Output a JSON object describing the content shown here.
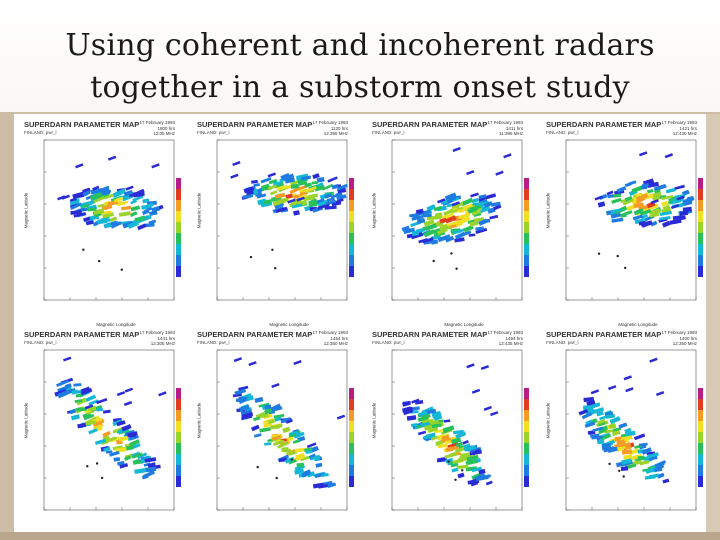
{
  "slide": {
    "title_line1": "Using coherent and incoherent radars",
    "title_line2": "together in a substorm onset study"
  },
  "panels": [
    {
      "title": "SUPERDARN PARAMETER MAP",
      "subtitle": "FINLAND: pwr_l",
      "info": "17 February 1993\n1800 hrs\n12:05 MHz",
      "xlabel": "Magnetic Longitude",
      "ylabel": "Magnetic Latitude"
    },
    {
      "title": "SUPERDARN PARAMETER MAP",
      "subtitle": "FINLAND: pwr_l",
      "info": "17 February 1993\n1120 hrs\n12:395 MHz",
      "xlabel": "Magnetic Longitude",
      "ylabel": "Magnetic Latitude"
    },
    {
      "title": "SUPERDARN PARAMETER MAP",
      "subtitle": "FINLAND: pwr_l",
      "info": "17 February 1993\n1411 hrs\n11:395 MHz",
      "xlabel": "Magnetic Longitude",
      "ylabel": "Magnetic Latitude"
    },
    {
      "title": "SUPERDARN PARAMETER MAP",
      "subtitle": "FINLAND: pwr_l",
      "info": "17 February 1993\n1421 hrs\n12:430 MHz",
      "xlabel": "Magnetic Longitude",
      "ylabel": "Magnetic Latitude"
    },
    {
      "title": "SUPERDARN PARAMETER MAP",
      "subtitle": "FINLAND: pwr_l",
      "info": "17 February 1993\n1441 hrs\n12:305 MHz",
      "xlabel": "Magnetic Longitude",
      "ylabel": "Magnetic Latitude"
    },
    {
      "title": "SUPERDARN PARAMETER MAP",
      "subtitle": "FINLAND: pwr_l",
      "info": "17 February 1993\n1454 hrs\n12:350 MHz",
      "xlabel": "Magnetic Longitude",
      "ylabel": "Magnetic Latitude"
    },
    {
      "title": "SUPERDARN PARAMETER MAP",
      "subtitle": "FINLAND: pwr_l",
      "info": "17 February 1993\n1494 hrs\n12:435 MHz",
      "xlabel": "Magnetic Longitude",
      "ylabel": "Magnetic Latitude"
    },
    {
      "title": "SUPERDARN PARAMETER MAP",
      "subtitle": "FINLAND: pwr_l",
      "info": "17 February 1993\n1400 hrs\n12:350 MHz",
      "xlabel": "Magnetic Longitude",
      "ylabel": "Magnetic Latitude"
    }
  ],
  "colors": {
    "scale": [
      "#2b2bd6",
      "#1e7be0",
      "#14b8d6",
      "#27c05a",
      "#9ad32a",
      "#f0e024",
      "#f59a22",
      "#e23b1f",
      "#b81c8a"
    ]
  }
}
